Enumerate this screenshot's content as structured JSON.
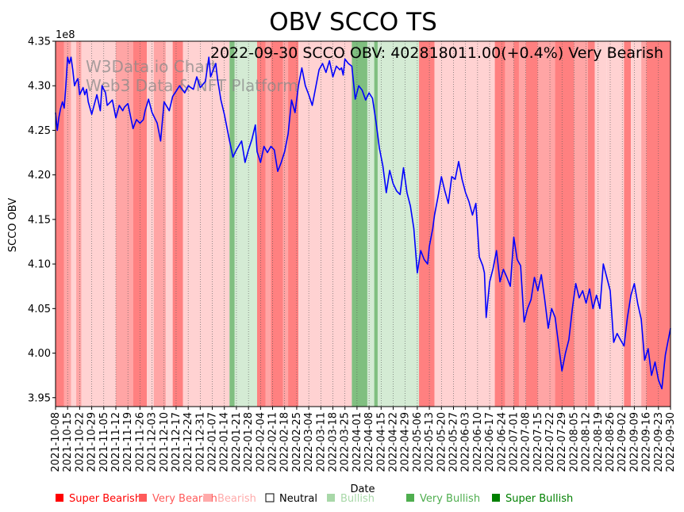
{
  "chart_data": {
    "type": "line",
    "title": "OBV SCCO TS",
    "annotation": "2022-09-30 SCCO OBV: 402818011.00(+0.4%) Very Bearish",
    "watermark": [
      "W3Data.io Chart",
      "Web3 Data & NFT Platform"
    ],
    "xlabel": "Date",
    "ylabel": "SCCO OBV",
    "y_offset_label": "1e8",
    "ylim": [
      3.94,
      4.35
    ],
    "yticks": [
      3.95,
      4.0,
      4.05,
      4.1,
      4.15,
      4.2,
      4.25,
      4.3,
      4.35
    ],
    "ytick_labels": [
      "3.95",
      "4.00",
      "4.05",
      "4.10",
      "4.15",
      "4.20",
      "4.25",
      "4.30",
      "4.35"
    ],
    "xlim": [
      "2021-10-08",
      "2022-09-30"
    ],
    "xticks": [
      "2021-10-08",
      "2021-10-15",
      "2021-10-22",
      "2021-10-29",
      "2021-11-05",
      "2021-11-12",
      "2021-11-19",
      "2021-11-26",
      "2021-12-03",
      "2021-12-10",
      "2021-12-17",
      "2021-12-24",
      "2021-12-31",
      "2022-01-07",
      "2022-01-14",
      "2022-01-21",
      "2022-01-28",
      "2022-02-04",
      "2022-02-11",
      "2022-02-18",
      "2022-02-25",
      "2022-03-04",
      "2022-03-11",
      "2022-03-18",
      "2022-03-25",
      "2022-04-01",
      "2022-04-08",
      "2022-04-15",
      "2022-04-22",
      "2022-04-29",
      "2022-05-06",
      "2022-05-13",
      "2022-05-20",
      "2022-05-27",
      "2022-06-03",
      "2022-06-10",
      "2022-06-17",
      "2022-06-24",
      "2022-07-01",
      "2022-07-08",
      "2022-07-15",
      "2022-07-22",
      "2022-07-29",
      "2022-08-05",
      "2022-08-12",
      "2022-08-19",
      "2022-08-26",
      "2022-09-02",
      "2022-09-09",
      "2022-09-16",
      "2022-09-23",
      "2022-09-30"
    ],
    "grid": "vertical dotted",
    "legend_position": "bottom",
    "legend": [
      {
        "label": "Super Bearish",
        "color": "#ff0000"
      },
      {
        "label": "Very Bearish",
        "color": "#ff5a5a"
      },
      {
        "label": "Bearish",
        "color": "#ffaaaa"
      },
      {
        "label": "Neutral",
        "color": "#ffffff"
      },
      {
        "label": "Bullish",
        "color": "#a8d8a8"
      },
      {
        "label": "Very Bullish",
        "color": "#4fae4f"
      },
      {
        "label": "Super Bullish",
        "color": "#008000"
      }
    ],
    "band_colors": {
      "very_bearish": "#ff8080",
      "bearish": "#ffa5a5",
      "light_bearish": "#ffd2d2",
      "bullish": "#d4ebd4",
      "very_bullish": "#80bf80"
    },
    "series": [
      {
        "color": "#0000ff",
        "x": [
          "2021-10-08",
          "2021-10-09",
          "2021-10-10",
          "2021-10-11",
          "2021-10-12",
          "2021-10-13",
          "2021-10-14",
          "2021-10-15",
          "2021-10-16",
          "2021-10-17",
          "2021-10-18",
          "2021-10-19",
          "2021-10-20",
          "2021-10-21",
          "2021-10-22",
          "2021-10-24",
          "2021-10-25",
          "2021-10-26",
          "2021-10-27",
          "2021-10-29",
          "2021-11-01",
          "2021-11-03",
          "2021-11-04",
          "2021-11-06",
          "2021-11-07",
          "2021-11-10",
          "2021-11-12",
          "2021-11-14",
          "2021-11-16",
          "2021-11-17",
          "2021-11-19",
          "2021-11-22",
          "2021-11-24",
          "2021-11-26",
          "2021-11-28",
          "2021-11-29",
          "2021-12-01",
          "2021-12-03",
          "2021-12-06",
          "2021-12-08",
          "2021-12-10",
          "2021-12-13",
          "2021-12-15",
          "2021-12-17",
          "2021-12-19",
          "2021-12-22",
          "2021-12-24",
          "2021-12-27",
          "2021-12-29",
          "2021-12-31",
          "2022-01-03",
          "2022-01-05",
          "2022-01-06",
          "2022-01-07",
          "2022-01-09",
          "2022-01-10",
          "2022-01-12",
          "2022-01-14",
          "2022-01-17",
          "2022-01-19",
          "2022-01-21",
          "2022-01-24",
          "2022-01-26",
          "2022-01-28",
          "2022-01-30",
          "2022-02-01",
          "2022-02-02",
          "2022-02-04",
          "2022-02-06",
          "2022-02-08",
          "2022-02-10",
          "2022-02-12",
          "2022-02-14",
          "2022-02-16",
          "2022-02-18",
          "2022-02-20",
          "2022-02-22",
          "2022-02-24",
          "2022-02-26",
          "2022-02-28",
          "2022-03-02",
          "2022-03-04",
          "2022-03-06",
          "2022-03-08",
          "2022-03-10",
          "2022-03-12",
          "2022-03-14",
          "2022-03-16",
          "2022-03-18",
          "2022-03-20",
          "2022-03-22",
          "2022-03-23",
          "2022-03-24",
          "2022-03-25",
          "2022-03-27",
          "2022-03-29",
          "2022-03-31",
          "2022-04-02",
          "2022-04-04",
          "2022-04-06",
          "2022-04-08",
          "2022-04-10",
          "2022-04-12",
          "2022-04-14",
          "2022-04-16",
          "2022-04-18",
          "2022-04-20",
          "2022-04-22",
          "2022-04-24",
          "2022-04-26",
          "2022-04-28",
          "2022-04-30",
          "2022-05-02",
          "2022-05-04",
          "2022-05-06",
          "2022-05-08",
          "2022-05-10",
          "2022-05-12",
          "2022-05-13",
          "2022-05-15",
          "2022-05-16",
          "2022-05-18",
          "2022-05-20",
          "2022-05-22",
          "2022-05-24",
          "2022-05-26",
          "2022-05-28",
          "2022-05-30",
          "2022-06-01",
          "2022-06-03",
          "2022-06-05",
          "2022-06-07",
          "2022-06-09",
          "2022-06-11",
          "2022-06-13",
          "2022-06-14",
          "2022-06-15",
          "2022-06-17",
          "2022-06-19",
          "2022-06-21",
          "2022-06-23",
          "2022-06-25",
          "2022-06-27",
          "2022-06-29",
          "2022-07-01",
          "2022-07-03",
          "2022-07-05",
          "2022-07-07",
          "2022-07-09",
          "2022-07-11",
          "2022-07-13",
          "2022-07-15",
          "2022-07-17",
          "2022-07-19",
          "2022-07-21",
          "2022-07-23",
          "2022-07-25",
          "2022-07-27",
          "2022-07-29",
          "2022-07-31",
          "2022-08-02",
          "2022-08-04",
          "2022-08-06",
          "2022-08-08",
          "2022-08-10",
          "2022-08-12",
          "2022-08-14",
          "2022-08-16",
          "2022-08-18",
          "2022-08-20",
          "2022-08-22",
          "2022-08-24",
          "2022-08-26",
          "2022-08-28",
          "2022-08-30",
          "2022-09-01",
          "2022-09-03",
          "2022-09-05",
          "2022-09-07",
          "2022-09-09",
          "2022-09-11",
          "2022-09-13",
          "2022-09-15",
          "2022-09-17",
          "2022-09-19",
          "2022-09-21",
          "2022-09-23",
          "2022-09-25",
          "2022-09-27",
          "2022-09-30"
        ],
        "values": [
          4.27,
          4.25,
          4.265,
          4.275,
          4.282,
          4.275,
          4.3,
          4.332,
          4.325,
          4.332,
          4.318,
          4.3,
          4.305,
          4.308,
          4.29,
          4.298,
          4.29,
          4.296,
          4.282,
          4.268,
          4.29,
          4.272,
          4.3,
          4.292,
          4.278,
          4.284,
          4.264,
          4.278,
          4.272,
          4.276,
          4.28,
          4.252,
          4.262,
          4.258,
          4.262,
          4.272,
          4.285,
          4.27,
          4.258,
          4.238,
          4.282,
          4.272,
          4.288,
          4.294,
          4.3,
          4.292,
          4.3,
          4.296,
          4.31,
          4.298,
          4.305,
          4.332,
          4.31,
          4.315,
          4.325,
          4.308,
          4.284,
          4.268,
          4.238,
          4.22,
          4.228,
          4.238,
          4.214,
          4.228,
          4.24,
          4.256,
          4.226,
          4.214,
          4.232,
          4.225,
          4.232,
          4.228,
          4.204,
          4.214,
          4.226,
          4.246,
          4.284,
          4.27,
          4.3,
          4.32,
          4.3,
          4.29,
          4.278,
          4.298,
          4.318,
          4.325,
          4.315,
          4.328,
          4.31,
          4.322,
          4.318,
          4.32,
          4.312,
          4.33,
          4.325,
          4.322,
          4.285,
          4.3,
          4.295,
          4.284,
          4.292,
          4.286,
          4.26,
          4.23,
          4.21,
          4.18,
          4.205,
          4.19,
          4.182,
          4.178,
          4.208,
          4.18,
          4.165,
          4.14,
          4.09,
          4.115,
          4.105,
          4.1,
          4.12,
          4.14,
          4.155,
          4.175,
          4.198,
          4.182,
          4.168,
          4.198,
          4.195,
          4.215,
          4.195,
          4.18,
          4.17,
          4.155,
          4.168,
          4.108,
          4.098,
          4.09,
          4.04,
          4.08,
          4.095,
          4.115,
          4.08,
          4.094,
          4.085,
          4.075,
          4.13,
          4.105,
          4.098,
          4.035,
          4.05,
          4.06,
          4.085,
          4.07,
          4.088,
          4.06,
          4.028,
          4.05,
          4.04,
          4.01,
          3.98,
          4.0,
          4.015,
          4.05,
          4.078,
          4.062,
          4.07,
          4.056,
          4.072,
          4.05,
          4.065,
          4.05,
          4.1,
          4.085,
          4.07,
          4.012,
          4.022,
          4.015,
          4.008,
          4.04,
          4.065,
          4.078,
          4.055,
          4.038,
          3.992,
          4.005,
          3.975,
          3.99,
          3.97,
          3.96,
          3.998,
          4.028
        ]
      }
    ],
    "bands": [
      {
        "from": "2021-10-08",
        "to": "2021-10-13",
        "tone": "very_bearish"
      },
      {
        "from": "2021-10-13",
        "to": "2021-10-17",
        "tone": "bearish"
      },
      {
        "from": "2021-10-17",
        "to": "2021-10-20",
        "tone": "light_bearish"
      },
      {
        "from": "2021-10-20",
        "to": "2021-10-23",
        "tone": "bearish"
      },
      {
        "from": "2021-10-23",
        "to": "2021-11-12",
        "tone": "light_bearish"
      },
      {
        "from": "2021-11-12",
        "to": "2021-11-22",
        "tone": "bearish"
      },
      {
        "from": "2021-11-22",
        "to": "2021-11-30",
        "tone": "very_bearish"
      },
      {
        "from": "2021-11-30",
        "to": "2021-12-04",
        "tone": "light_bearish"
      },
      {
        "from": "2021-12-04",
        "to": "2021-12-11",
        "tone": "bearish"
      },
      {
        "from": "2021-12-11",
        "to": "2021-12-15",
        "tone": "light_bearish"
      },
      {
        "from": "2021-12-15",
        "to": "2021-12-21",
        "tone": "very_bearish"
      },
      {
        "from": "2021-12-21",
        "to": "2022-01-17",
        "tone": "light_bearish"
      },
      {
        "from": "2022-01-17",
        "to": "2022-01-20",
        "tone": "very_bullish"
      },
      {
        "from": "2022-01-20",
        "to": "2022-02-02",
        "tone": "bullish"
      },
      {
        "from": "2022-02-02",
        "to": "2022-02-07",
        "tone": "very_bearish"
      },
      {
        "from": "2022-02-07",
        "to": "2022-02-10",
        "tone": "bearish"
      },
      {
        "from": "2022-02-10",
        "to": "2022-02-17",
        "tone": "very_bearish"
      },
      {
        "from": "2022-02-17",
        "to": "2022-02-20",
        "tone": "bearish"
      },
      {
        "from": "2022-02-20",
        "to": "2022-02-26",
        "tone": "very_bearish"
      },
      {
        "from": "2022-02-26",
        "to": "2022-03-29",
        "tone": "light_bearish"
      },
      {
        "from": "2022-03-29",
        "to": "2022-04-07",
        "tone": "very_bullish"
      },
      {
        "from": "2022-04-07",
        "to": "2022-04-11",
        "tone": "bullish"
      },
      {
        "from": "2022-04-11",
        "to": "2022-04-13",
        "tone": "very_bullish"
      },
      {
        "from": "2022-04-13",
        "to": "2022-05-07",
        "tone": "bullish"
      },
      {
        "from": "2022-05-07",
        "to": "2022-05-16",
        "tone": "very_bearish"
      },
      {
        "from": "2022-05-16",
        "to": "2022-06-20",
        "tone": "light_bearish"
      },
      {
        "from": "2022-06-20",
        "to": "2022-06-26",
        "tone": "very_bearish"
      },
      {
        "from": "2022-06-26",
        "to": "2022-07-01",
        "tone": "bearish"
      },
      {
        "from": "2022-07-01",
        "to": "2022-07-04",
        "tone": "very_bearish"
      },
      {
        "from": "2022-07-04",
        "to": "2022-07-08",
        "tone": "bearish"
      },
      {
        "from": "2022-07-08",
        "to": "2022-07-15",
        "tone": "very_bearish"
      },
      {
        "from": "2022-07-15",
        "to": "2022-07-25",
        "tone": "bearish"
      },
      {
        "from": "2022-07-25",
        "to": "2022-08-05",
        "tone": "very_bearish"
      },
      {
        "from": "2022-08-05",
        "to": "2022-08-13",
        "tone": "bearish"
      },
      {
        "from": "2022-08-13",
        "to": "2022-08-17",
        "tone": "very_bearish"
      },
      {
        "from": "2022-08-17",
        "to": "2022-08-24",
        "tone": "light_bearish"
      },
      {
        "from": "2022-08-24",
        "to": "2022-09-03",
        "tone": "light_bearish"
      },
      {
        "from": "2022-09-03",
        "to": "2022-09-07",
        "tone": "very_bearish"
      },
      {
        "from": "2022-09-07",
        "to": "2022-09-13",
        "tone": "light_bearish"
      },
      {
        "from": "2022-09-13",
        "to": "2022-09-16",
        "tone": "bearish"
      },
      {
        "from": "2022-09-16",
        "to": "2022-09-30",
        "tone": "very_bearish"
      }
    ]
  }
}
